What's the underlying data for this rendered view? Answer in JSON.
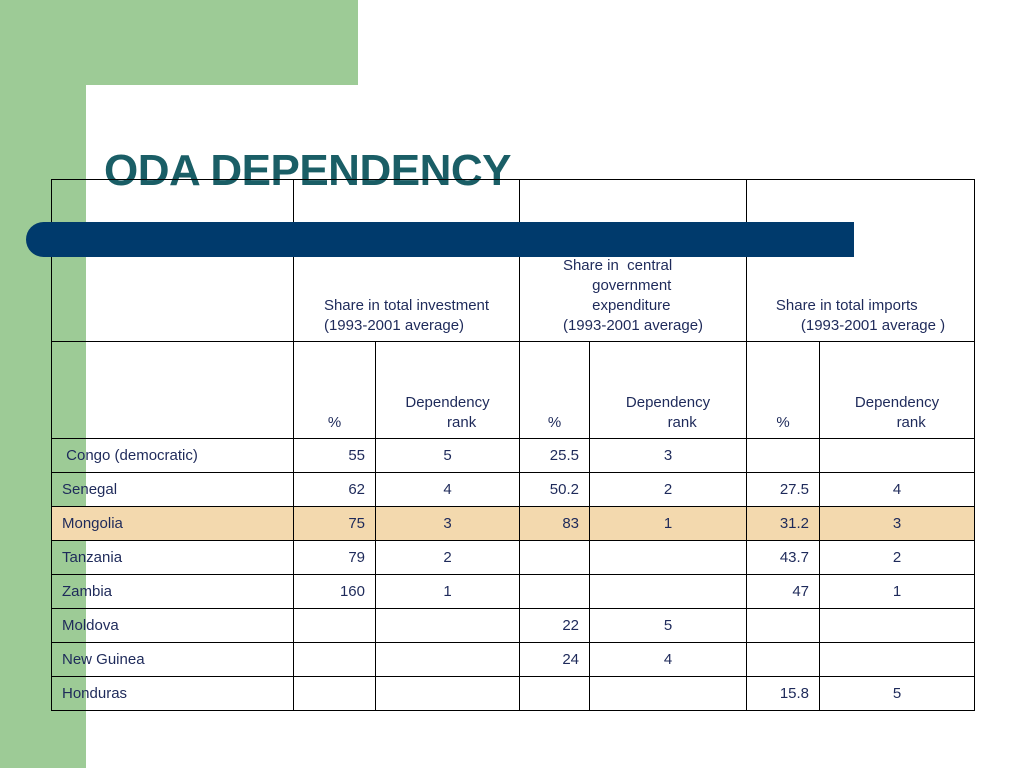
{
  "slide": {
    "title": "ODA DEPENDENCY"
  },
  "table": {
    "group_headers": [
      "Share in total investment\n(1993-2001 average)",
      "Share in  central\n       government\n       expenditure\n(1993-2001 average)",
      "Share in total imports\n      (1993-2001 average )"
    ],
    "subheaders": {
      "pct": "%",
      "rank": "Dependency\n          rank"
    },
    "rows": [
      {
        "country": " Congo (democratic)",
        "inv_pct": "55",
        "inv_rank": "5",
        "gov_pct": "25.5",
        "gov_rank": "3",
        "imp_pct": "",
        "imp_rank": ""
      },
      {
        "country": "Senegal",
        "inv_pct": "62",
        "inv_rank": "4",
        "gov_pct": "50.2",
        "gov_rank": "2",
        "imp_pct": "27.5",
        "imp_rank": "4"
      },
      {
        "country": "Mongolia",
        "inv_pct": "75",
        "inv_rank": "3",
        "gov_pct": "83",
        "gov_rank": "1",
        "imp_pct": "31.2",
        "imp_rank": "3"
      },
      {
        "country": "Tanzania",
        "inv_pct": "79",
        "inv_rank": "2",
        "gov_pct": "",
        "gov_rank": "",
        "imp_pct": "43.7",
        "imp_rank": "2"
      },
      {
        "country": "Zambia",
        "inv_pct": "160",
        "inv_rank": "1",
        "gov_pct": "",
        "gov_rank": "",
        "imp_pct": "47",
        "imp_rank": "1"
      },
      {
        "country": "Moldova",
        "inv_pct": "",
        "inv_rank": "",
        "gov_pct": "22",
        "gov_rank": "5",
        "imp_pct": "",
        "imp_rank": ""
      },
      {
        "country": "New Guinea",
        "inv_pct": "",
        "inv_rank": "",
        "gov_pct": "24",
        "gov_rank": "4",
        "imp_pct": "",
        "imp_rank": ""
      },
      {
        "country": "Honduras",
        "inv_pct": "",
        "inv_rank": "",
        "gov_pct": "",
        "gov_rank": "",
        "imp_pct": "15.8",
        "imp_rank": "5"
      }
    ],
    "highlight_row": "Mongolia",
    "colors": {
      "highlight": "#f3d9ae",
      "title": "#1a5e66",
      "accent_bar": "#003a6c",
      "decor_green": "#9dcb96",
      "text": "#1e2a5a"
    }
  }
}
